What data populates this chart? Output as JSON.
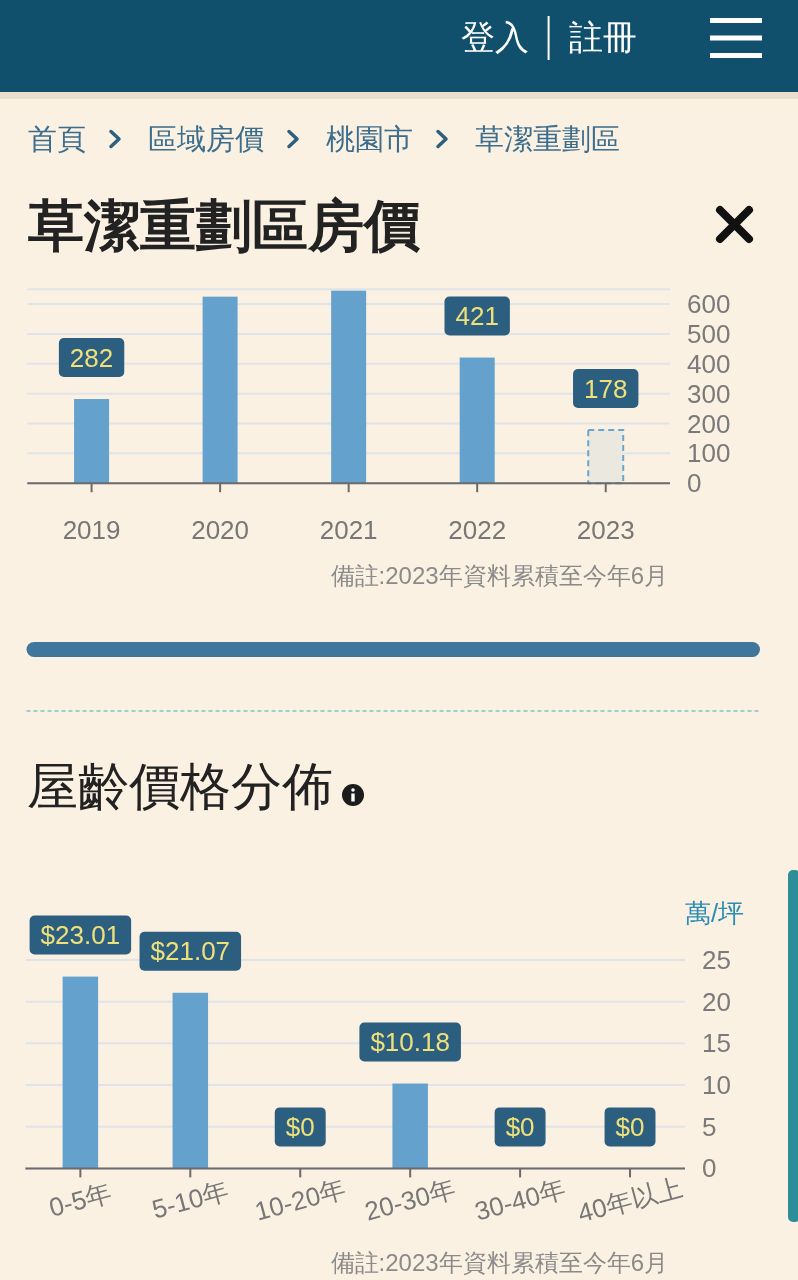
{
  "chart_data": [
    {
      "type": "other",
      "annotations": [
        "登入",
        "註冊",
        "首頁",
        "區域房價",
        "桃園市",
        "草潔重劃區"
      ]
    },
    {
      "type": "bar",
      "title": "草潔重劃區房價",
      "categories": [
        "2019",
        "2020",
        "2021",
        "2022",
        "2023"
      ],
      "series": [
        {
          "color": "#64a1cc",
          "values": [
            282,
            625,
            645,
            421,
            null
          ],
          "value_labels": [
            "282",
            null,
            null,
            "421",
            null
          ]
        },
        {
          "color": "#ebe8df",
          "line_style": "dashed",
          "values": [
            null,
            null,
            null,
            null,
            178
          ],
          "value_labels": [
            null,
            null,
            null,
            null,
            "178"
          ]
        }
      ],
      "ylim": [
        0,
        650
      ],
      "yticks": [
        0,
        100,
        200,
        300,
        400,
        500,
        600
      ],
      "grid": "y",
      "annotations": [
        "備註:2023年資料累積至今年6月"
      ]
    },
    {
      "type": "bar",
      "title": "屋齡價格分佈",
      "ylabel": "萬/坪",
      "categories": [
        "0-5年",
        "5-10年",
        "10-20年",
        "20-30年",
        "30-40年",
        "40年以上"
      ],
      "color": "#64a1cc",
      "values": [
        23.01,
        21.07,
        0,
        10.18,
        0,
        0
      ],
      "value_labels": [
        "$23.01",
        "$21.07",
        "$0",
        "$10.18",
        "$0",
        "$0"
      ],
      "ylim": [
        0,
        25
      ],
      "yticks": [
        0,
        5,
        10,
        15,
        20,
        25
      ],
      "grid": "y",
      "annotations": [
        "備註:2023年資料累積至今年6月"
      ]
    }
  ]
}
